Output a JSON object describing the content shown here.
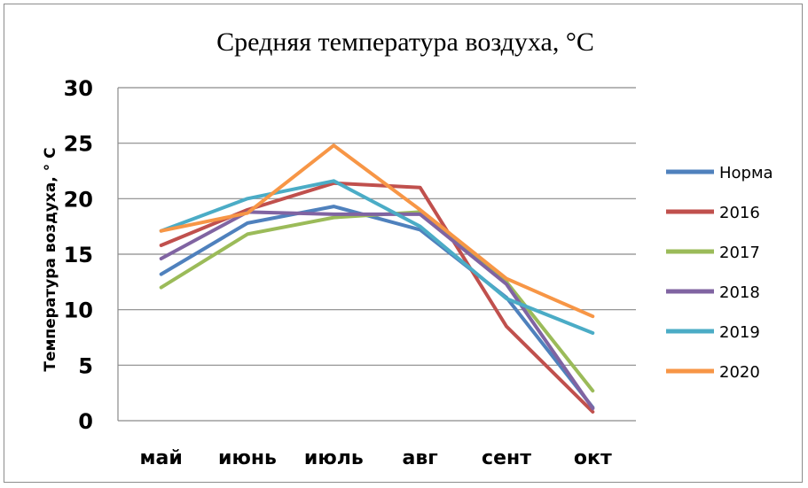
{
  "chart_data": {
    "type": "line",
    "title": "Средняя температура воздуха, °С",
    "xlabel": "",
    "ylabel": "Температура воздуха, ° С",
    "categories": [
      "май",
      "июнь",
      "июль",
      "авг",
      "сент",
      "окт"
    ],
    "ylim": [
      0,
      30
    ],
    "yticks": [
      "0",
      "5",
      "10",
      "15",
      "20",
      "25",
      "30"
    ],
    "grid": true,
    "legend_position": "right",
    "series": [
      {
        "name": "Норма",
        "color": "#4f81bd",
        "values": [
          13.2,
          17.8,
          19.3,
          17.2,
          11.1,
          1.2
        ]
      },
      {
        "name": "2016",
        "color": "#c0504d",
        "values": [
          15.8,
          19.0,
          21.4,
          21.0,
          8.5,
          0.8
        ]
      },
      {
        "name": "2017",
        "color": "#9bbb59",
        "values": [
          12.0,
          16.8,
          18.3,
          18.8,
          12.5,
          2.7
        ]
      },
      {
        "name": "2018",
        "color": "#8064a2",
        "values": [
          14.6,
          18.8,
          18.6,
          18.6,
          12.3,
          1.1
        ]
      },
      {
        "name": "2019",
        "color": "#4bacc6",
        "values": [
          17.1,
          20.0,
          21.6,
          17.5,
          11.0,
          7.9
        ]
      },
      {
        "name": "2020",
        "color": "#f79646",
        "values": [
          17.1,
          18.7,
          24.8,
          19.0,
          12.8,
          9.4
        ]
      }
    ]
  }
}
